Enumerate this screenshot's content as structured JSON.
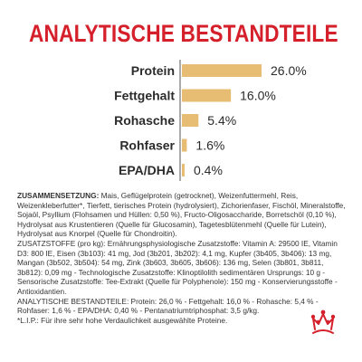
{
  "title": "ANALYTISCHE BESTANDTEILE",
  "colors": {
    "title": "#d51f2b",
    "bar": "#e7bd74",
    "axis": "#555555",
    "logo": "#d51f2b"
  },
  "chart_data": {
    "type": "bar",
    "orientation": "horizontal",
    "categories": [
      "Protein",
      "Fettgehalt",
      "Rohasche",
      "Rohfaser",
      "EPA/DHA"
    ],
    "values": [
      26.0,
      16.0,
      5.4,
      1.6,
      0.4
    ],
    "value_labels": [
      "26.0%",
      "16.0%",
      "5.4%",
      "1.6%",
      "0.4%"
    ],
    "unit": "%",
    "xlim": [
      0,
      30
    ],
    "grid": false,
    "legend": "none",
    "title": "ANALYTISCHE BESTANDTEILE",
    "xlabel": "",
    "ylabel": ""
  },
  "composition": {
    "label": "ZUSAMMENSETZUNG:",
    "text": " Mais, Geflügelprotein (getrocknet), Weizenfuttermehl, Reis, Weizenkleberfutter*, Tierfett, tierisches Protein (hydrolysiert), Zichorienfaser, Fischöl, Mineralstoffe, Sojaöl, Psyllium (Flohsamen und Hüllen: 0,50 %), Fructo-Oligosaccharide, Borretschöl (0,10 %), Hydrolysat aus Krustentieren (Quelle für Glucosamin), Tagetesblütenmehl (Quelle für Lutein), Hydrolysat aus Knorpel (Quelle für Chondroitin).",
    "additives": "ZUSATZSTOFFE (pro kg): Ernährungsphysiologische Zusatzstoffe: Vitamin A: 29500 IE, Vitamin D3: 800 IE, Eisen (3b103): 41 mg, Jod (3b201, 3b202): 4,1 mg, Kupfer (3b405, 3b406): 13 mg, Mangan (3b502, 3b504): 54 mg, Zink (3b603, 3b605, 3b606): 136 mg, Selen (3b801, 3b811, 3b812): 0,09 mg - Technologische Zusatzstoffe: Klinoptilolith sedimentären Ursprungs: 10 g - Sensorische Zusatzstoffe: Tee-Extrakt (Quelle für Polyphenole): 150 mg - Konservierungsstoffe - Antioxidantien.",
    "analytics": "ANALYTISCHE BESTANDTEILE: Protein: 26,0 % - Fettgehalt: 16,0 % - Rohasche: 5,4 % - Rohfaser: 1,6 % - EPA/DHA: 0,40 % - Pentanatriumtriphosphat: 3,5 g/kg.",
    "footnote": "*L.I.P.: Für ihre sehr hohe Verdaulichkeit ausgewählte Proteine."
  },
  "logo": {
    "name": "royal-canin-crown-logo"
  }
}
